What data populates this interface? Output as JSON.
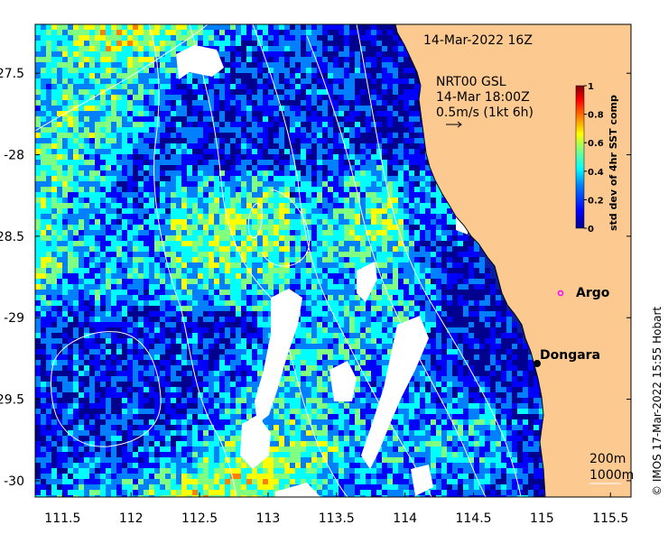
{
  "map": {
    "timestamp": "14-Mar-2022 16Z",
    "current_info": {
      "line1": "NRT00 GSL",
      "line2": "14-Mar 18:00Z",
      "line3": "0.5m/s (1kt 6h)"
    },
    "places": [
      {
        "name": "Argo",
        "lon": 115.12,
        "lat": -28.85,
        "marker": "circle-magenta"
      },
      {
        "name": "Dongara",
        "lon": 114.93,
        "lat": -29.25,
        "marker": "dot-black"
      }
    ],
    "x_axis": {
      "range": [
        111.3,
        115.65
      ],
      "ticks": [
        "111.5",
        "112",
        "112.5",
        "113",
        "113.5",
        "114",
        "114.5",
        "115",
        "115.5"
      ]
    },
    "y_axis": {
      "range": [
        -30.1,
        -27.2
      ],
      "ticks": [
        "-27.5",
        "-28",
        "-28.5",
        "-29",
        "-29.5",
        "-30"
      ]
    },
    "colorbar": {
      "title": "std dev of 4hr SST comp",
      "ticks": [
        "0",
        "0.2",
        "0.4",
        "0.6",
        "0.8",
        "1"
      ],
      "colors": [
        "#00008f",
        "#0000ff",
        "#0080ff",
        "#00ffff",
        "#80ff80",
        "#ffff00",
        "#ff8000",
        "#ff0000",
        "#800000"
      ]
    },
    "contour_labels": [
      "200m",
      "1000m"
    ],
    "credit": "© IMOS 17-Mar-2022 15:55 Hobart",
    "colors": {
      "land": "#fcc990",
      "ocean_base": "#0a1fa0",
      "contour": "#ffffff"
    }
  }
}
